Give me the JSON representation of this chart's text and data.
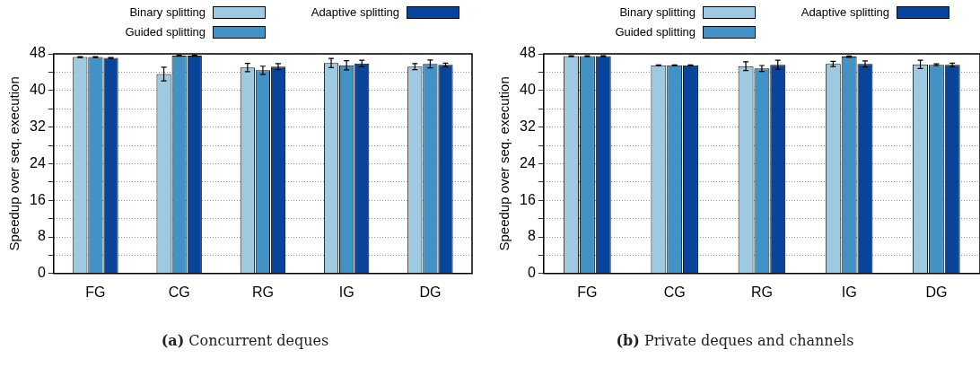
{
  "chart_data": [
    {
      "type": "bar",
      "ylabel": "Speedup over seq. execution",
      "categories": [
        "FG",
        "CG",
        "RG",
        "IG",
        "DG"
      ],
      "series": [
        {
          "name": "Binary splitting",
          "color": "#9ecae1",
          "values": [
            47.3,
            43.6,
            45.0,
            46.0,
            45.2
          ],
          "errors": [
            0.1,
            1.5,
            0.9,
            1.0,
            0.65
          ]
        },
        {
          "name": "Guided splitting",
          "color": "#4292c6",
          "values": [
            47.3,
            47.6,
            44.4,
            45.5,
            45.8
          ],
          "errors": [
            0.1,
            0.1,
            0.9,
            1.0,
            0.85
          ]
        },
        {
          "name": "Adaptive splitting",
          "color": "#08459a",
          "values": [
            47.1,
            47.6,
            45.2,
            45.9,
            45.6
          ],
          "errors": [
            0.1,
            0.1,
            0.65,
            0.7,
            0.35
          ]
        }
      ],
      "ylim": [
        0,
        48
      ],
      "yticks": [
        0,
        {
          "value": 4,
          "label": null
        },
        8,
        {
          "value": 12,
          "label": null
        },
        16,
        {
          "value": 20,
          "label": null
        },
        24,
        {
          "value": 28,
          "label": null
        },
        32,
        {
          "value": 36,
          "label": null
        },
        40,
        {
          "value": 44,
          "label": null
        },
        48
      ],
      "grid": "y",
      "legend": "top",
      "annotations": [
        "(a) Concurrent deques"
      ]
    },
    {
      "type": "bar",
      "ylabel": "Speedup over seq. execution",
      "categories": [
        "FG",
        "CG",
        "RG",
        "IG",
        "DG"
      ],
      "series": [
        {
          "name": "Binary splitting",
          "color": "#9ecae1",
          "values": [
            47.5,
            45.5,
            45.3,
            45.8,
            45.7
          ],
          "errors": [
            0.1,
            0.1,
            0.95,
            0.55,
            0.9
          ]
        },
        {
          "name": "Guided splitting",
          "color": "#4292c6",
          "values": [
            47.5,
            45.5,
            44.8,
            47.4,
            45.6
          ],
          "errors": [
            0.1,
            0.1,
            0.65,
            0.15,
            0.2
          ]
        },
        {
          "name": "Adaptive splitting",
          "color": "#08459a",
          "values": [
            47.5,
            45.5,
            45.6,
            45.8,
            45.6
          ],
          "errors": [
            0.1,
            0.1,
            1.0,
            0.65,
            0.35
          ]
        }
      ],
      "ylim": [
        0,
        48
      ],
      "yticks": [
        0,
        {
          "value": 4,
          "label": null
        },
        8,
        {
          "value": 12,
          "label": null
        },
        16,
        {
          "value": 20,
          "label": null
        },
        24,
        {
          "value": 28,
          "label": null
        },
        32,
        {
          "value": 36,
          "label": null
        },
        40,
        {
          "value": 44,
          "label": null
        },
        48
      ],
      "grid": "y",
      "legend": "top",
      "annotations": [
        "(b) Private deques and channels"
      ]
    }
  ]
}
